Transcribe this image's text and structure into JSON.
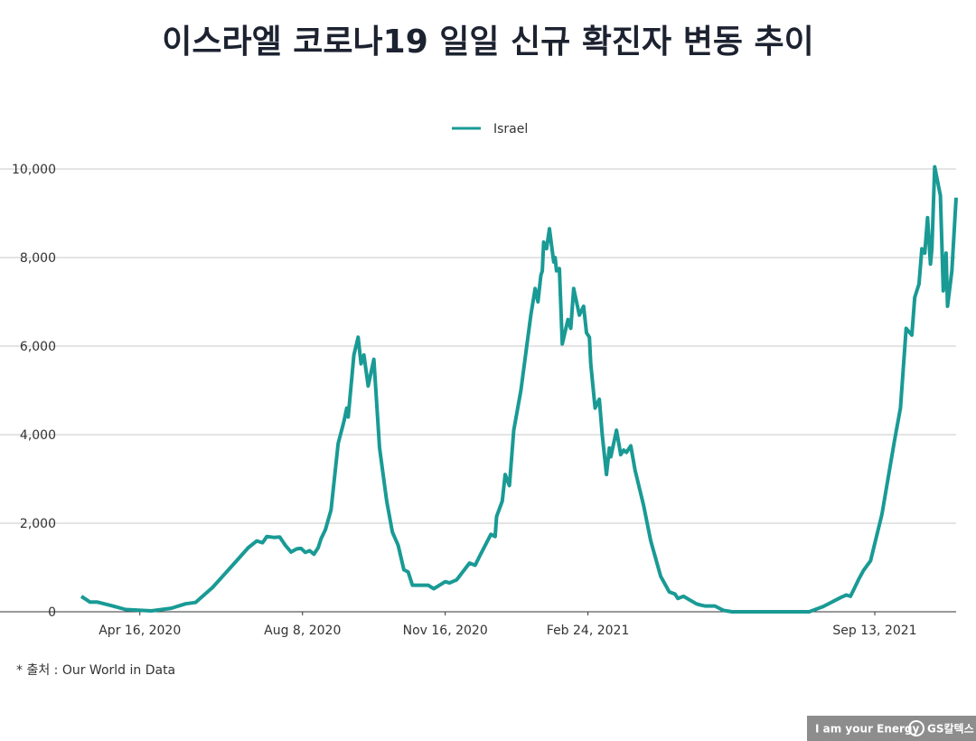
{
  "chart_data": {
    "type": "line",
    "title": "이스라엘 코로나19 일일 신규 확진자 변동 추이",
    "source": "* 출처 : Our World in Data",
    "logo_slogan": "I am your Energy",
    "logo_brand": "GS칼텍스",
    "legend": "top",
    "grid": true,
    "x": [
      "2020-03-06",
      "2020-03-12",
      "2020-03-17",
      "2020-03-28",
      "2020-04-06",
      "2020-04-24",
      "2020-05-08",
      "2020-05-18",
      "2020-05-25",
      "2020-06-06",
      "2020-06-20",
      "2020-07-01",
      "2020-07-07",
      "2020-07-11",
      "2020-07-14",
      "2020-07-19",
      "2020-07-23",
      "2020-07-27",
      "2020-07-31",
      "2020-08-04",
      "2020-08-07",
      "2020-08-10",
      "2020-08-13",
      "2020-08-16",
      "2020-08-19",
      "2020-08-21",
      "2020-08-24",
      "2020-08-28",
      "2020-09-02",
      "2020-09-06",
      "2020-09-08",
      "2020-09-09",
      "2020-09-13",
      "2020-09-16",
      "2020-09-18",
      "2020-09-20",
      "2020-09-23",
      "2020-09-27",
      "2020-10-01",
      "2020-10-06",
      "2020-10-10",
      "2020-10-14",
      "2020-10-18",
      "2020-10-21",
      "2020-10-24",
      "2020-11-04",
      "2020-11-08",
      "2020-11-12",
      "2020-11-16",
      "2020-11-19",
      "2020-11-24",
      "2020-12-03",
      "2020-12-07",
      "2020-12-10",
      "2020-12-18",
      "2020-12-21",
      "2020-12-22",
      "2020-12-26",
      "2020-12-28",
      "2020-12-31",
      "2021-01-03",
      "2021-01-08",
      "2021-01-15",
      "2021-01-18",
      "2021-01-20",
      "2021-01-22",
      "2021-01-23",
      "2021-01-24",
      "2021-01-26",
      "2021-01-28",
      "2021-01-31",
      "2021-02-01",
      "2021-02-02",
      "2021-02-04",
      "2021-02-06",
      "2021-02-10",
      "2021-02-12",
      "2021-02-14",
      "2021-02-18",
      "2021-02-21",
      "2021-02-23",
      "2021-02-25",
      "2021-02-26",
      "2021-03-01",
      "2021-03-04",
      "2021-03-06",
      "2021-03-09",
      "2021-03-11",
      "2021-03-12",
      "2021-03-16",
      "2021-03-19",
      "2021-03-21",
      "2021-03-23",
      "2021-03-26",
      "2021-03-29",
      "2021-04-04",
      "2021-04-09",
      "2021-04-16",
      "2021-04-22",
      "2021-04-26",
      "2021-04-28",
      "2021-05-02",
      "2021-05-11",
      "2021-05-14",
      "2021-05-17",
      "2021-05-24",
      "2021-05-30",
      "2021-06-05",
      "2021-07-29",
      "2021-08-08",
      "2021-08-20",
      "2021-08-24",
      "2021-08-27",
      "2021-08-30",
      "2021-09-02",
      "2021-09-05",
      "2021-09-10",
      "2021-09-18",
      "2021-09-27",
      "2021-10-01",
      "2021-10-05",
      "2021-10-09",
      "2021-10-11",
      "2021-10-14",
      "2021-10-16",
      "2021-10-18",
      "2021-10-20",
      "2021-10-22",
      "2021-10-23",
      "2021-10-25",
      "2021-10-29",
      "2021-10-31",
      "2021-11-02",
      "2021-11-03",
      "2021-11-06",
      "2021-11-09"
    ],
    "series": [
      {
        "name": "Israel",
        "color": "#1a9a95",
        "values": [
          350,
          220,
          220,
          130,
          50,
          20,
          80,
          180,
          210,
          550,
          1050,
          1450,
          1600,
          1560,
          1700,
          1680,
          1690,
          1500,
          1350,
          1420,
          1430,
          1340,
          1380,
          1300,
          1450,
          1650,
          1850,
          2300,
          3800,
          4300,
          4600,
          4400,
          5800,
          6200,
          5600,
          5800,
          5100,
          5700,
          3700,
          2500,
          1800,
          1500,
          950,
          900,
          600,
          600,
          520,
          600,
          680,
          650,
          720,
          1100,
          1050,
          1250,
          1750,
          1700,
          2150,
          2500,
          3100,
          2850,
          4100,
          5000,
          6700,
          7300,
          7000,
          7600,
          7700,
          8350,
          8200,
          8650,
          7900,
          8000,
          7700,
          7750,
          6050,
          6600,
          6400,
          7300,
          6700,
          6900,
          6300,
          6200,
          5600,
          4600,
          4800,
          4000,
          3100,
          3700,
          3500,
          4100,
          3550,
          3650,
          3600,
          3750,
          3200,
          2400,
          1600,
          800,
          450,
          400,
          300,
          350,
          180,
          150,
          130,
          130,
          30,
          0,
          0,
          120,
          320,
          380,
          350,
          550,
          750,
          930,
          1150,
          2200,
          3900,
          4600,
          6400,
          6250,
          7100,
          7400,
          8200,
          8100,
          8900,
          7850,
          8200,
          10050,
          9400,
          7250,
          8100,
          6900,
          7700,
          9350
        ]
      }
    ],
    "xlim": [
      "2020-03-06",
      "2021-11-09"
    ],
    "xticks": [
      {
        "value": "2020-04-16",
        "label": "Apr 16, 2020"
      },
      {
        "value": "2020-08-08",
        "label": "Aug 8, 2020"
      },
      {
        "value": "2020-11-16",
        "label": "Nov 16, 2020"
      },
      {
        "value": "2021-02-24",
        "label": "Feb 24, 2021"
      },
      {
        "value": "2021-09-13",
        "label": "Sep 13, 2021"
      }
    ],
    "ylim": [
      0,
      10000
    ],
    "yticks": [
      0,
      {
        "value": 2000,
        "label": "2,000"
      },
      {
        "value": 4000,
        "label": "4,000"
      },
      {
        "value": 6000,
        "label": "6,000"
      },
      {
        "value": 8000,
        "label": "8,000"
      },
      {
        "value": 10000,
        "label": "10,000"
      }
    ]
  }
}
